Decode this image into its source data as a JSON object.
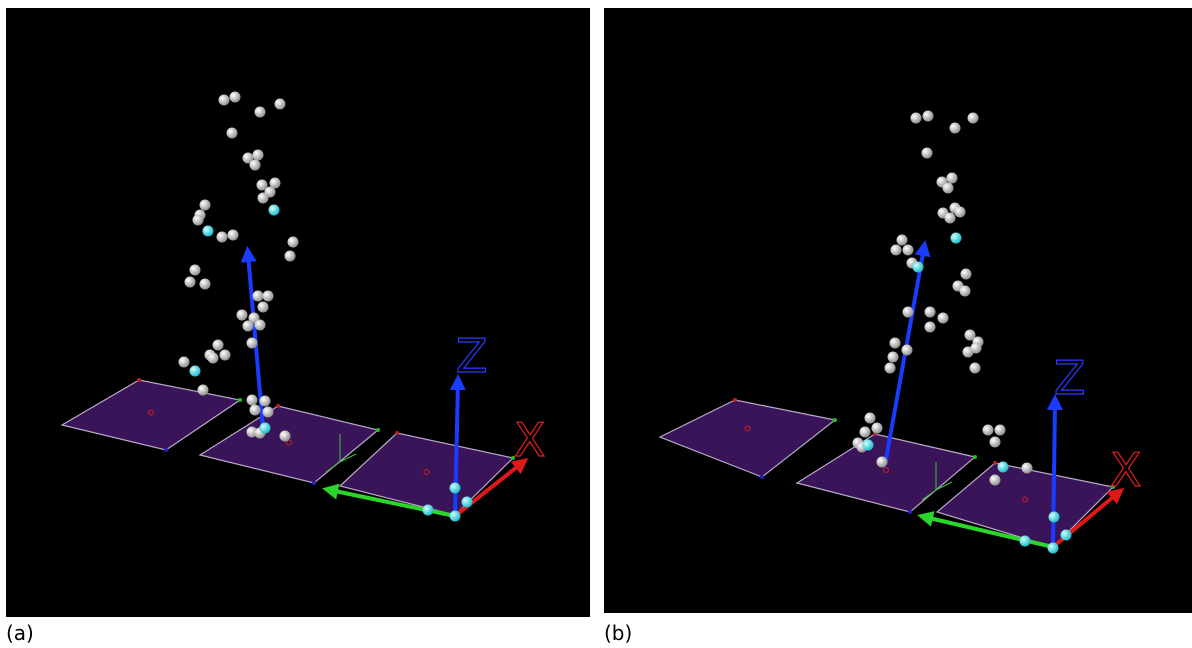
{
  "panels": [
    {
      "caption": "(a)",
      "axis_labels": [
        "Z",
        "X"
      ]
    },
    {
      "caption": "(b)",
      "axis_labels": [
        "Z",
        "X"
      ]
    }
  ]
}
